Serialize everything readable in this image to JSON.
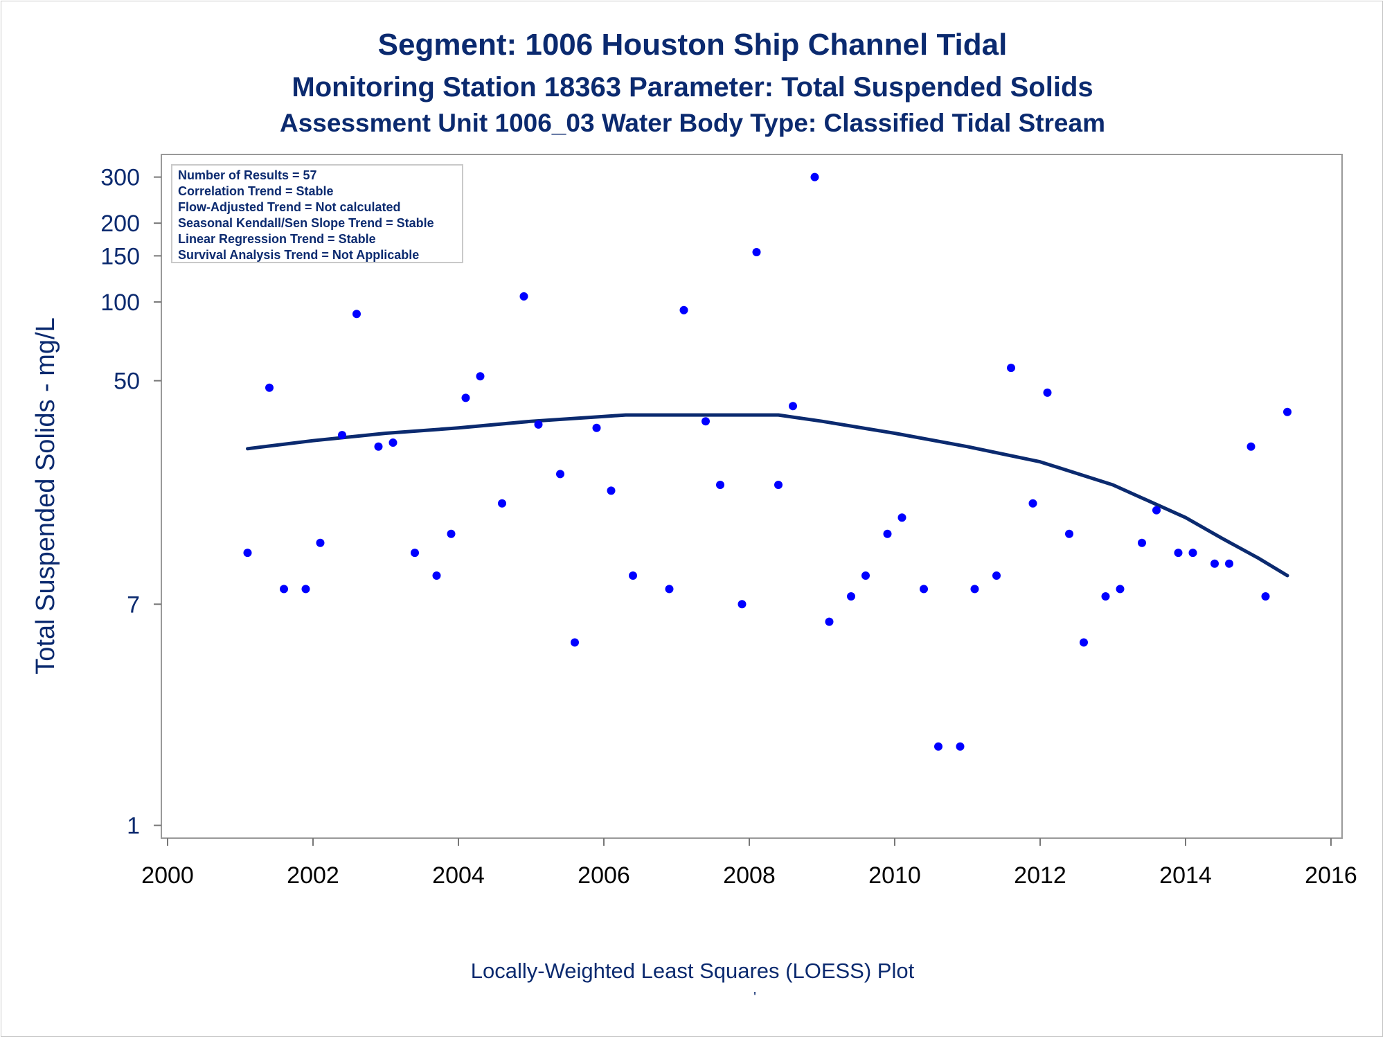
{
  "titles": [
    "Segment: 1006  Houston Ship Channel Tidal",
    "Monitoring Station 18363 Parameter: Total Suspended Solids",
    "Assessment Unit 1006_03   Water Body Type: Classified Tidal Stream"
  ],
  "stats_box": [
    "Number of Results = 57",
    "Correlation Trend = Stable",
    "Flow-Adjusted Trend = Not calculated",
    "Seasonal Kendall/Sen Slope Trend = Stable",
    "Linear Regression Trend = Stable",
    "Survival Analysis Trend = Not Applicable"
  ],
  "footnote": "Locally-Weighted Least Squares (LOESS) Plot",
  "footnote_mark": "'",
  "colors": {
    "text": "#0b2a6f",
    "points": "#0000ff",
    "loess": "#0b2a6f",
    "axis": "#999999"
  },
  "chart_data": {
    "type": "scatter",
    "xlabel": "",
    "ylabel": "Total Suspended Solids - mg/L",
    "y_scale": "log",
    "xlim": [
      2000,
      2016
    ],
    "ylim": [
      0.95,
      330
    ],
    "x_ticks": [
      2000,
      2002,
      2004,
      2006,
      2008,
      2010,
      2012,
      2014,
      2016
    ],
    "x_tick_labels": [
      "2000",
      "2002",
      "2004",
      "2006",
      "2008",
      "2010",
      "2012",
      "2014",
      "2016"
    ],
    "y_ticks": [
      1,
      7,
      50,
      100,
      150,
      200,
      300
    ],
    "y_tick_labels": [
      "1",
      "7",
      "50",
      "100",
      "150",
      "200",
      "300"
    ],
    "grid": false,
    "legend": "none",
    "points": [
      {
        "x": 2001.1,
        "y": 11
      },
      {
        "x": 2001.4,
        "y": 47
      },
      {
        "x": 2001.6,
        "y": 8
      },
      {
        "x": 2001.9,
        "y": 8
      },
      {
        "x": 2002.1,
        "y": 12
      },
      {
        "x": 2002.4,
        "y": 31
      },
      {
        "x": 2002.6,
        "y": 90
      },
      {
        "x": 2002.9,
        "y": 28
      },
      {
        "x": 2003.1,
        "y": 29
      },
      {
        "x": 2003.4,
        "y": 11
      },
      {
        "x": 2003.7,
        "y": 9
      },
      {
        "x": 2003.9,
        "y": 13
      },
      {
        "x": 2004.1,
        "y": 43
      },
      {
        "x": 2004.3,
        "y": 52
      },
      {
        "x": 2004.6,
        "y": 17
      },
      {
        "x": 2004.9,
        "y": 105
      },
      {
        "x": 2005.1,
        "y": 34
      },
      {
        "x": 2005.4,
        "y": 22
      },
      {
        "x": 2005.6,
        "y": 5
      },
      {
        "x": 2005.9,
        "y": 33
      },
      {
        "x": 2006.1,
        "y": 19
      },
      {
        "x": 2006.4,
        "y": 9
      },
      {
        "x": 2006.9,
        "y": 8
      },
      {
        "x": 2007.1,
        "y": 93
      },
      {
        "x": 2007.4,
        "y": 35
      },
      {
        "x": 2007.6,
        "y": 20
      },
      {
        "x": 2007.9,
        "y": 7
      },
      {
        "x": 2008.1,
        "y": 155
      },
      {
        "x": 2008.4,
        "y": 20
      },
      {
        "x": 2008.6,
        "y": 40
      },
      {
        "x": 2008.9,
        "y": 300
      },
      {
        "x": 2009.1,
        "y": 6
      },
      {
        "x": 2009.4,
        "y": 7.5
      },
      {
        "x": 2009.6,
        "y": 9
      },
      {
        "x": 2009.9,
        "y": 13
      },
      {
        "x": 2010.1,
        "y": 15
      },
      {
        "x": 2010.4,
        "y": 8
      },
      {
        "x": 2010.6,
        "y": 2
      },
      {
        "x": 2010.9,
        "y": 2
      },
      {
        "x": 2011.1,
        "y": 8
      },
      {
        "x": 2011.4,
        "y": 9
      },
      {
        "x": 2011.6,
        "y": 56
      },
      {
        "x": 2011.9,
        "y": 17
      },
      {
        "x": 2012.1,
        "y": 45
      },
      {
        "x": 2012.4,
        "y": 13
      },
      {
        "x": 2012.6,
        "y": 5
      },
      {
        "x": 2012.9,
        "y": 7.5
      },
      {
        "x": 2013.1,
        "y": 8
      },
      {
        "x": 2013.4,
        "y": 12
      },
      {
        "x": 2013.6,
        "y": 16
      },
      {
        "x": 2013.9,
        "y": 11
      },
      {
        "x": 2014.1,
        "y": 11
      },
      {
        "x": 2014.4,
        "y": 10
      },
      {
        "x": 2014.6,
        "y": 10
      },
      {
        "x": 2014.9,
        "y": 28
      },
      {
        "x": 2015.1,
        "y": 7.5
      },
      {
        "x": 2015.4,
        "y": 38
      }
    ],
    "loess_line": [
      {
        "x": 2001.1,
        "y": 27.5
      },
      {
        "x": 2002.0,
        "y": 29.5
      },
      {
        "x": 2003.0,
        "y": 31.5
      },
      {
        "x": 2004.0,
        "y": 33.0
      },
      {
        "x": 2005.0,
        "y": 35.0
      },
      {
        "x": 2006.0,
        "y": 36.5
      },
      {
        "x": 2006.3,
        "y": 37.0
      },
      {
        "x": 2007.0,
        "y": 37.0
      },
      {
        "x": 2008.0,
        "y": 37.0
      },
      {
        "x": 2008.4,
        "y": 37.0
      },
      {
        "x": 2009.0,
        "y": 35.0
      },
      {
        "x": 2010.0,
        "y": 31.5
      },
      {
        "x": 2011.0,
        "y": 28.0
      },
      {
        "x": 2012.0,
        "y": 24.5
      },
      {
        "x": 2013.0,
        "y": 20.0
      },
      {
        "x": 2014.0,
        "y": 15.0
      },
      {
        "x": 2014.5,
        "y": 12.5
      },
      {
        "x": 2015.0,
        "y": 10.5
      },
      {
        "x": 2015.4,
        "y": 9.0
      }
    ]
  }
}
